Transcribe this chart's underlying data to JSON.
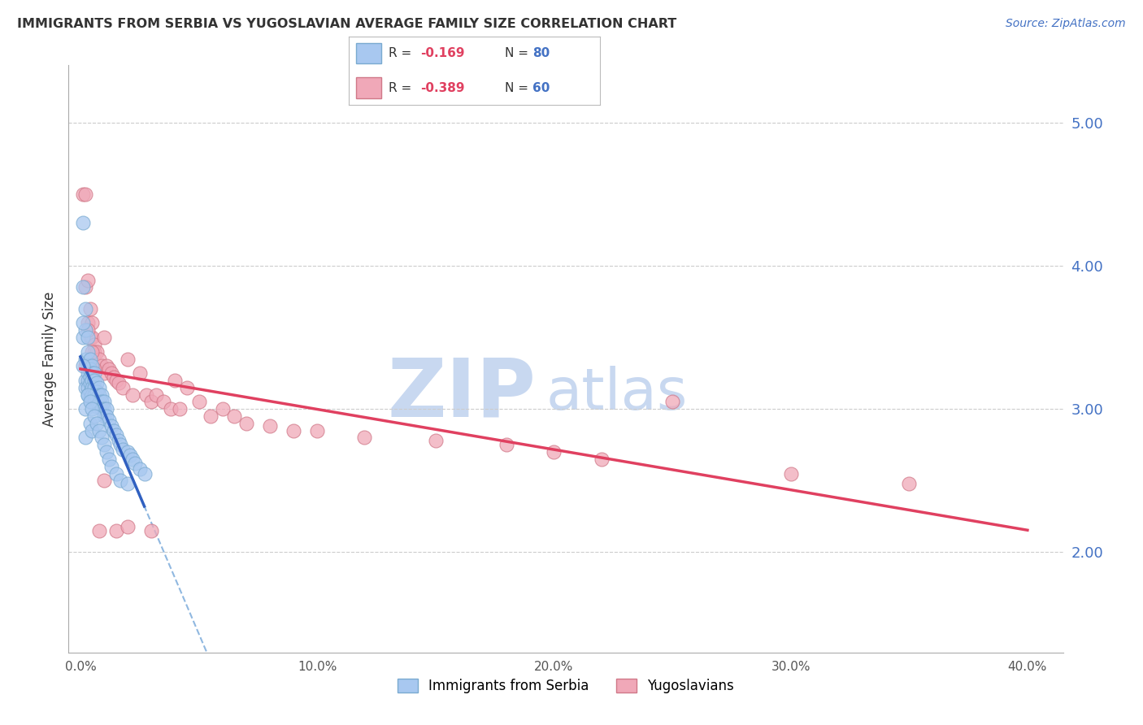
{
  "title": "IMMIGRANTS FROM SERBIA VS YUGOSLAVIAN AVERAGE FAMILY SIZE CORRELATION CHART",
  "source": "Source: ZipAtlas.com",
  "ylabel": "Average Family Size",
  "xlabel_ticks": [
    "0.0%",
    "10.0%",
    "20.0%",
    "30.0%",
    "40.0%"
  ],
  "xlabel_vals": [
    0.0,
    0.1,
    0.2,
    0.3,
    0.4
  ],
  "right_yticks": [
    2.0,
    3.0,
    4.0,
    5.0
  ],
  "ylim": [
    1.3,
    5.4
  ],
  "xlim": [
    -0.005,
    0.415
  ],
  "series1_label": "Immigrants from Serbia",
  "series1_N": 80,
  "series1_color": "#a8c8f0",
  "series1_edge": "#7aaad0",
  "series2_label": "Yugoslavians",
  "series2_N": 60,
  "series2_color": "#f0a8b8",
  "series2_edge": "#d07888",
  "trend1_color": "#3060c0",
  "trend2_color": "#e04060",
  "dashed_color": "#90b8e0",
  "watermark_zip": "ZIP",
  "watermark_atlas": "atlas",
  "watermark_color": "#c8d8f0",
  "grid_color": "#cccccc",
  "title_color": "#333333",
  "right_tick_color": "#4472c4",
  "serbia_x": [
    0.001,
    0.001,
    0.001,
    0.002,
    0.002,
    0.002,
    0.002,
    0.002,
    0.003,
    0.003,
    0.003,
    0.003,
    0.003,
    0.003,
    0.003,
    0.004,
    0.004,
    0.004,
    0.004,
    0.004,
    0.004,
    0.005,
    0.005,
    0.005,
    0.005,
    0.005,
    0.005,
    0.006,
    0.006,
    0.006,
    0.006,
    0.006,
    0.007,
    0.007,
    0.007,
    0.007,
    0.008,
    0.008,
    0.008,
    0.009,
    0.009,
    0.009,
    0.01,
    0.01,
    0.01,
    0.011,
    0.011,
    0.012,
    0.013,
    0.014,
    0.015,
    0.016,
    0.017,
    0.018,
    0.02,
    0.021,
    0.022,
    0.023,
    0.025,
    0.027,
    0.001,
    0.001,
    0.002,
    0.002,
    0.003,
    0.004,
    0.004,
    0.005,
    0.005,
    0.006,
    0.007,
    0.008,
    0.009,
    0.01,
    0.011,
    0.012,
    0.013,
    0.015,
    0.017,
    0.02
  ],
  "serbia_y": [
    4.3,
    3.85,
    3.5,
    3.7,
    3.55,
    3.35,
    3.2,
    3.15,
    3.5,
    3.4,
    3.3,
    3.25,
    3.2,
    3.15,
    3.1,
    3.35,
    3.28,
    3.22,
    3.18,
    3.12,
    3.08,
    3.3,
    3.25,
    3.2,
    3.15,
    3.1,
    3.05,
    3.25,
    3.2,
    3.15,
    3.1,
    3.05,
    3.18,
    3.12,
    3.08,
    3.02,
    3.15,
    3.1,
    3.05,
    3.1,
    3.05,
    3.0,
    3.05,
    3.0,
    2.95,
    3.0,
    2.95,
    2.92,
    2.88,
    2.85,
    2.82,
    2.78,
    2.75,
    2.72,
    2.7,
    2.68,
    2.65,
    2.62,
    2.58,
    2.55,
    3.6,
    3.3,
    3.0,
    2.8,
    3.1,
    3.05,
    2.9,
    3.0,
    2.85,
    2.95,
    2.9,
    2.85,
    2.8,
    2.75,
    2.7,
    2.65,
    2.6,
    2.55,
    2.5,
    2.48
  ],
  "yugoslav_x": [
    0.001,
    0.002,
    0.002,
    0.003,
    0.003,
    0.004,
    0.004,
    0.005,
    0.005,
    0.006,
    0.006,
    0.007,
    0.008,
    0.009,
    0.01,
    0.01,
    0.011,
    0.012,
    0.013,
    0.014,
    0.015,
    0.016,
    0.018,
    0.02,
    0.022,
    0.025,
    0.028,
    0.03,
    0.032,
    0.035,
    0.038,
    0.04,
    0.042,
    0.045,
    0.05,
    0.055,
    0.06,
    0.065,
    0.07,
    0.08,
    0.09,
    0.1,
    0.12,
    0.15,
    0.18,
    0.2,
    0.22,
    0.25,
    0.3,
    0.35,
    0.002,
    0.003,
    0.004,
    0.005,
    0.006,
    0.008,
    0.01,
    0.015,
    0.02,
    0.03
  ],
  "yugoslav_y": [
    4.5,
    4.5,
    3.85,
    3.9,
    3.6,
    3.7,
    3.5,
    3.6,
    3.5,
    3.45,
    3.4,
    3.4,
    3.35,
    3.3,
    3.25,
    3.5,
    3.3,
    3.28,
    3.25,
    3.22,
    3.2,
    3.18,
    3.15,
    3.35,
    3.1,
    3.25,
    3.1,
    3.05,
    3.1,
    3.05,
    3.0,
    3.2,
    3.0,
    3.15,
    3.05,
    2.95,
    3.0,
    2.95,
    2.9,
    2.88,
    2.85,
    2.85,
    2.8,
    2.78,
    2.75,
    2.7,
    2.65,
    3.05,
    2.55,
    2.48,
    3.3,
    3.55,
    3.3,
    3.4,
    3.28,
    2.15,
    2.5,
    2.15,
    2.18,
    2.15
  ]
}
